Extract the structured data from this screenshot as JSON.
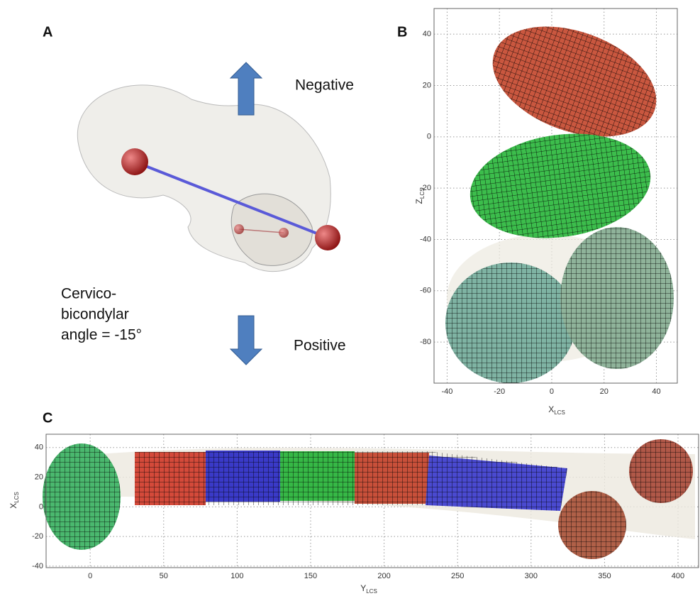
{
  "panel_a": {
    "letter": "A",
    "negative_label": "Negative",
    "positive_label": "Positive",
    "angle_text": [
      "Cervico-",
      "bicondylar",
      "angle = -15°"
    ]
  },
  "panel_b": {
    "letter": "B",
    "x_label": {
      "main": "X",
      "sub": "LCS"
    },
    "y_label": {
      "main": "Z",
      "sub": "LCS"
    },
    "xlim": [
      -45,
      48
    ],
    "ylim": [
      -96,
      50
    ],
    "xticks": [
      -40,
      -20,
      0,
      20,
      40
    ],
    "yticks": [
      40,
      20,
      0,
      -20,
      -40,
      -60,
      -80
    ]
  },
  "panel_c": {
    "letter": "C",
    "x_label": {
      "main": "Y",
      "sub": "LCS"
    },
    "y_label": {
      "main": "X",
      "sub": "LCS"
    },
    "xlim": [
      -30,
      414
    ],
    "ylim": [
      -41,
      49
    ],
    "xticks": [
      0,
      50,
      100,
      150,
      200,
      250,
      300,
      350,
      400
    ],
    "yticks": [
      40,
      20,
      0,
      -20,
      -40
    ]
  }
}
